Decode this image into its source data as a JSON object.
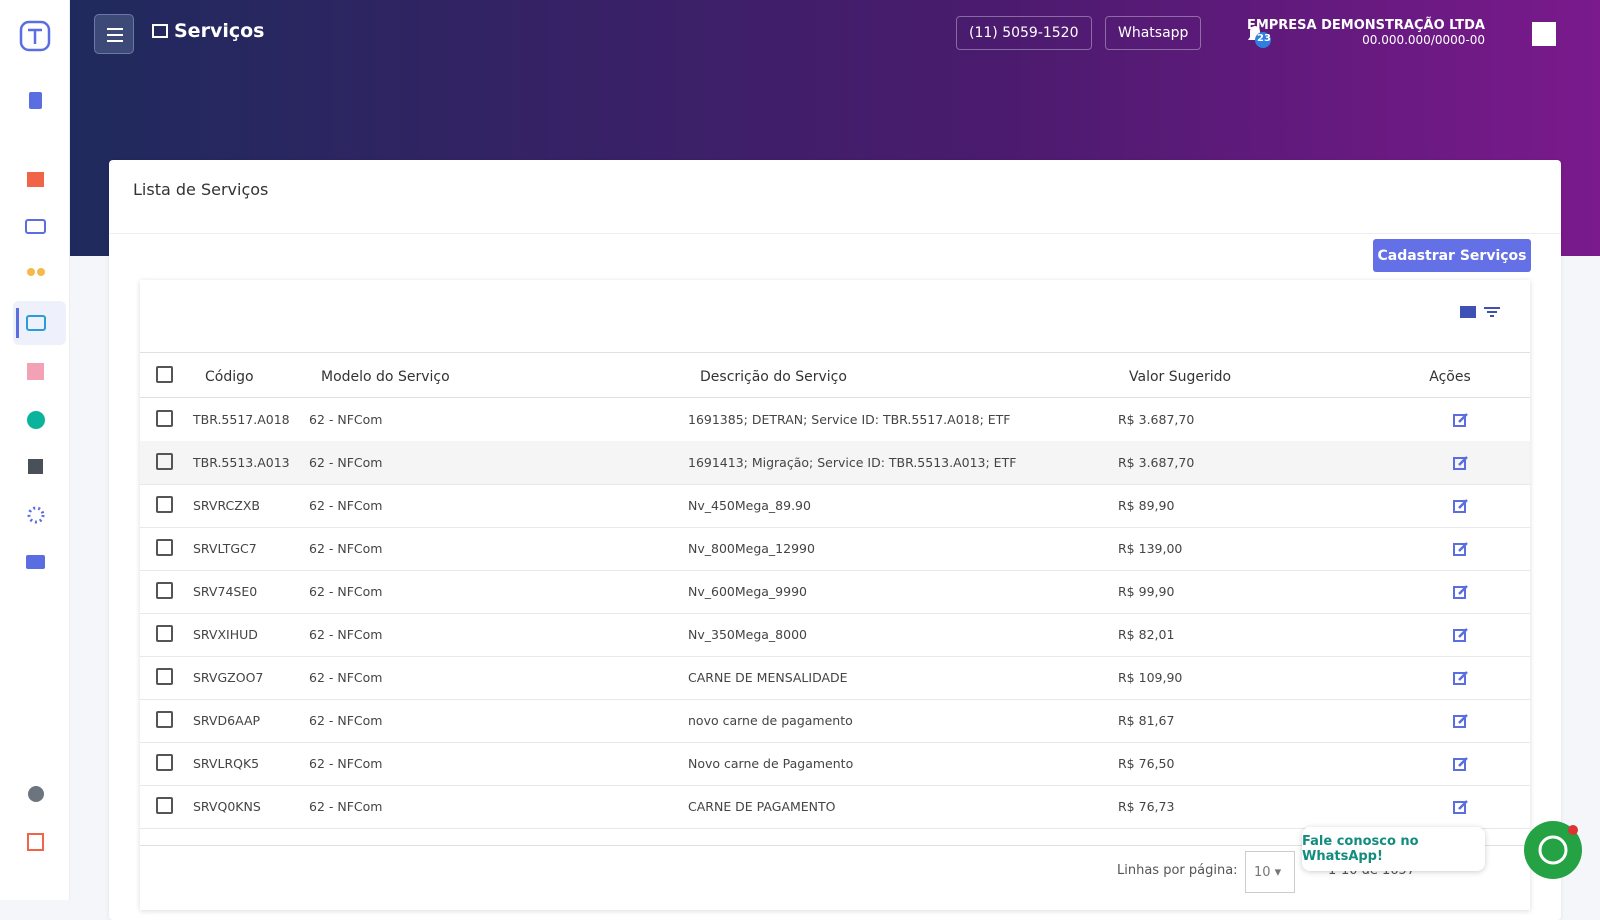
{
  "header": {
    "title": "Serviços",
    "phone": "(11) 5059-1520",
    "whatsapp": "Whatsapp",
    "notifications": "23",
    "company_name": "EMPRESA DEMONSTRAÇÃO LTDA",
    "company_cnpj": "00.000.000/0000-00"
  },
  "page": {
    "title": "Lista de Serviços",
    "primary_action": "Cadastrar Serviços"
  },
  "table": {
    "columns": [
      "Código",
      "Modelo do Serviço",
      "Descrição do Serviço",
      "Valor Sugerido",
      "Ações"
    ],
    "rows": [
      [
        "TBR.5517.A018",
        "62 - NFCom",
        "1691385; DETRAN; Service ID: TBR.5517.A018; ETF",
        "R$ 3.687,70"
      ],
      [
        "TBR.5513.A013",
        "62 - NFCom",
        "1691413; Migração; Service ID: TBR.5513.A013; ETF",
        "R$ 3.687,70"
      ],
      [
        "SRVRCZXB",
        "62 - NFCom",
        "Nv_450Mega_89.90",
        "R$ 89,90"
      ],
      [
        "SRVLTGC7",
        "62 - NFCom",
        "Nv_800Mega_12990",
        "R$ 139,00"
      ],
      [
        "SRV74SE0",
        "62 - NFCom",
        "Nv_600Mega_9990",
        "R$ 99,90"
      ],
      [
        "SRVXIHUD",
        "62 - NFCom",
        "Nv_350Mega_8000",
        "R$ 82,01"
      ],
      [
        "SRVGZOO7",
        "62 - NFCom",
        "CARNE DE MENSALIDADE",
        "R$ 109,90"
      ],
      [
        "SRVD6AAP",
        "62 - NFCom",
        "novo carne de pagamento",
        "R$ 81,67"
      ],
      [
        "SRVLRQK5",
        "62 - NFCom",
        "Novo carne de Pagamento",
        "R$ 76,50"
      ],
      [
        "SRVQ0KNS",
        "62 - NFCom",
        "CARNE DE PAGAMENTO",
        "R$ 76,73"
      ]
    ]
  },
  "pagination": {
    "rows_per_page_label": "Linhas por página:",
    "rows_per_page": 10,
    "range": "1-10 de 1657"
  },
  "whatsapp_popup": "Fale conosco no WhatsApp!"
}
